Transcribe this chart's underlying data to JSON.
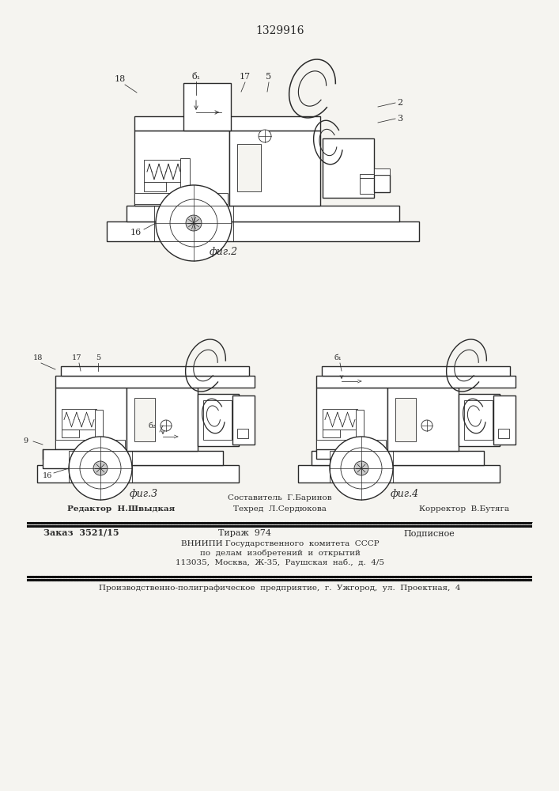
{
  "patent_number": "1329916",
  "bg_color": "#f5f4f0",
  "line_color": "#2a2a2a",
  "fig2_caption": "фиг.2",
  "fig3_caption": "фиг.3",
  "fig4_caption": "фиг.4",
  "footer_sestavitel": "Составитель  Г.Баринов",
  "footer_redaktor": "Редактор  Н.Швыдкая",
  "footer_tehred": "Техред  Л.Сердюкова",
  "footer_korrektor": "Корректор  В.Бутяга",
  "footer_zakaz": "Заказ  3521/15",
  "footer_tirazh": "Тираж  974",
  "footer_podpisnoe": "Подписное",
  "footer_vniip1": "ВНИИПИ Государственного  комитета  СССР",
  "footer_vniip2": "по  делам  изобретений  и  открытий",
  "footer_vniip3": "113035,  Москва,  Ж-35,  Раушская  наб.,  д.  4/5",
  "footer_bottom": "Производственно-полиграфическое  предприятие,  г.  Ужгород,  ул.  Проектная,  4"
}
